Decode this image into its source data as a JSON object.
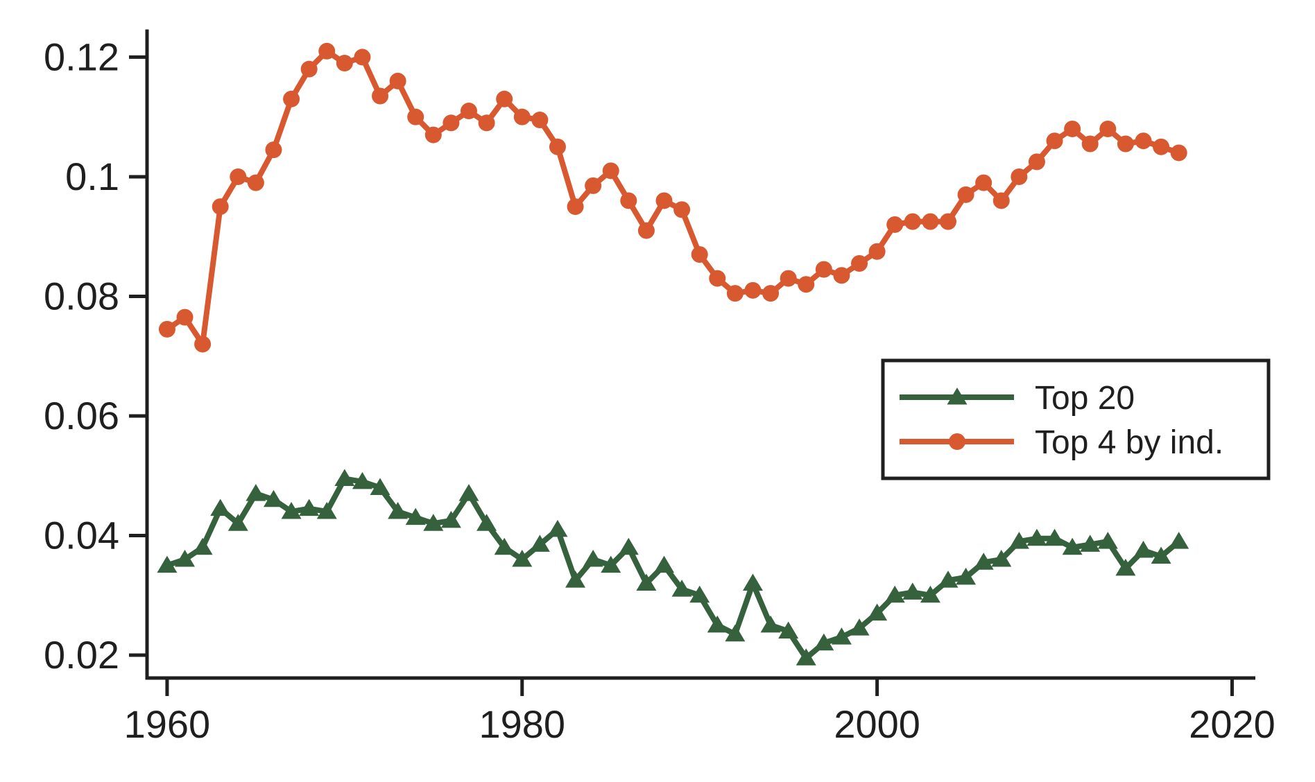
{
  "chart_data": {
    "type": "line",
    "title": "",
    "xlabel": "",
    "ylabel": "",
    "grid": false,
    "background": "#ffffff",
    "axis_color": "#1f1f1f",
    "x": [
      1960,
      1961,
      1962,
      1963,
      1964,
      1965,
      1966,
      1967,
      1968,
      1969,
      1970,
      1971,
      1972,
      1973,
      1974,
      1975,
      1976,
      1977,
      1978,
      1979,
      1980,
      1981,
      1982,
      1983,
      1984,
      1985,
      1986,
      1987,
      1988,
      1989,
      1990,
      1991,
      1992,
      1993,
      1994,
      1995,
      1996,
      1997,
      1998,
      1999,
      2000,
      2001,
      2002,
      2003,
      2004,
      2005,
      2006,
      2007,
      2008,
      2009,
      2010,
      2011,
      2012,
      2013,
      2014,
      2015,
      2016,
      2017
    ],
    "series": [
      {
        "name": "Top 20",
        "marker": "triangle",
        "color": "#35613d",
        "values": [
          0.035,
          0.036,
          0.038,
          0.0445,
          0.042,
          0.047,
          0.046,
          0.044,
          0.0445,
          0.044,
          0.0495,
          0.049,
          0.048,
          0.044,
          0.043,
          0.042,
          0.0425,
          0.047,
          0.042,
          0.038,
          0.036,
          0.0385,
          0.041,
          0.0325,
          0.036,
          0.035,
          0.038,
          0.032,
          0.035,
          0.031,
          0.03,
          0.025,
          0.0235,
          0.032,
          0.025,
          0.024,
          0.0195,
          0.022,
          0.023,
          0.0245,
          0.027,
          0.03,
          0.0305,
          0.03,
          0.0325,
          0.033,
          0.0355,
          0.036,
          0.039,
          0.0395,
          0.0395,
          0.038,
          0.0385,
          0.039,
          0.0345,
          0.0375,
          0.0365,
          0.039
        ]
      },
      {
        "name": "Top 4 by ind.",
        "marker": "circle",
        "color": "#d85830",
        "values": [
          0.0745,
          0.0765,
          0.072,
          0.095,
          0.1,
          0.099,
          0.1045,
          0.113,
          0.118,
          0.121,
          0.119,
          0.12,
          0.1135,
          0.116,
          0.11,
          0.107,
          0.109,
          0.111,
          0.109,
          0.113,
          0.11,
          0.1095,
          0.105,
          0.095,
          0.0985,
          0.101,
          0.096,
          0.091,
          0.096,
          0.0945,
          0.087,
          0.083,
          0.0805,
          0.081,
          0.0805,
          0.083,
          0.082,
          0.0845,
          0.0835,
          0.0855,
          0.0875,
          0.092,
          0.0925,
          0.0925,
          0.0925,
          0.097,
          0.099,
          0.096,
          0.1,
          0.1025,
          0.106,
          0.108,
          0.1055,
          0.108,
          0.1055,
          0.106,
          0.105,
          0.104
        ]
      }
    ],
    "x_ticks": {
      "values": [
        1960,
        1980,
        2000,
        2020
      ],
      "labels": [
        "1960",
        "1980",
        "2000",
        "2020"
      ]
    },
    "y_ticks": {
      "values": [
        0.02,
        0.04,
        0.06,
        0.08,
        0.1,
        0.12
      ],
      "labels": [
        "0.02",
        "0.04",
        "0.06",
        "0.08",
        "0.1",
        "0.12"
      ]
    },
    "xlim": [
      1958.87,
      2021.31
    ],
    "ylim": [
      0.01617,
      0.12434
    ],
    "legend": {
      "position": "right-middle",
      "entries": [
        "Top 20",
        "Top 4 by ind."
      ]
    }
  }
}
